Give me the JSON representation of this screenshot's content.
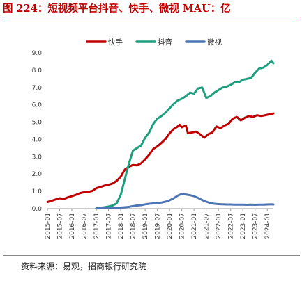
{
  "figure": {
    "title": "图 224：短视频平台抖音、快手、微视 MAU：亿",
    "source": "资料来源：易观，招商银行研究院"
  },
  "chart_data": {
    "type": "line",
    "ylim": [
      0,
      9
    ],
    "y_ticks": [
      "0.0",
      "1.0",
      "2.0",
      "3.0",
      "4.0",
      "5.0",
      "6.0",
      "7.0",
      "8.0",
      "9.0"
    ],
    "x_tick_labels": [
      "2015-01",
      "2015-07",
      "2016-01",
      "2016-07",
      "2017-01",
      "2017-07",
      "2018-01",
      "2018-07",
      "2019-01",
      "2019-07",
      "2020-01",
      "2020-07",
      "2021-01",
      "2021-07",
      "2022-01",
      "2022-07",
      "2023-01",
      "2023-07",
      "2024-01"
    ],
    "x_range": [
      "2015-01",
      "2024-04"
    ],
    "grid": false,
    "legend_position": "top",
    "series": [
      {
        "name": "快手",
        "color": "#c00000",
        "points": [
          [
            "2015-01",
            0.38
          ],
          [
            "2015-03",
            0.45
          ],
          [
            "2015-05",
            0.53
          ],
          [
            "2015-07",
            0.6
          ],
          [
            "2015-09",
            0.56
          ],
          [
            "2015-11",
            0.65
          ],
          [
            "2016-01",
            0.72
          ],
          [
            "2016-03",
            0.8
          ],
          [
            "2016-05",
            0.9
          ],
          [
            "2016-07",
            0.95
          ],
          [
            "2016-09",
            0.97
          ],
          [
            "2016-11",
            1.02
          ],
          [
            "2017-01",
            1.18
          ],
          [
            "2017-03",
            1.25
          ],
          [
            "2017-05",
            1.33
          ],
          [
            "2017-07",
            1.38
          ],
          [
            "2017-09",
            1.45
          ],
          [
            "2017-11",
            1.6
          ],
          [
            "2018-01",
            1.85
          ],
          [
            "2018-03",
            2.25
          ],
          [
            "2018-05",
            2.42
          ],
          [
            "2018-07",
            2.52
          ],
          [
            "2018-09",
            2.5
          ],
          [
            "2018-11",
            2.62
          ],
          [
            "2019-01",
            2.85
          ],
          [
            "2019-03",
            3.12
          ],
          [
            "2019-05",
            3.45
          ],
          [
            "2019-07",
            3.6
          ],
          [
            "2019-09",
            3.8
          ],
          [
            "2019-11",
            4.02
          ],
          [
            "2020-01",
            4.35
          ],
          [
            "2020-03",
            4.6
          ],
          [
            "2020-05",
            4.75
          ],
          [
            "2020-06",
            4.85
          ],
          [
            "2020-07",
            4.7
          ],
          [
            "2020-09",
            4.8
          ],
          [
            "2020-10",
            4.35
          ],
          [
            "2020-12",
            4.4
          ],
          [
            "2021-02",
            4.45
          ],
          [
            "2021-04",
            4.3
          ],
          [
            "2021-06",
            4.1
          ],
          [
            "2021-08",
            4.3
          ],
          [
            "2021-10",
            4.4
          ],
          [
            "2021-12",
            4.75
          ],
          [
            "2022-02",
            4.65
          ],
          [
            "2022-04",
            4.8
          ],
          [
            "2022-06",
            4.9
          ],
          [
            "2022-08",
            5.2
          ],
          [
            "2022-10",
            5.3
          ],
          [
            "2022-12",
            5.1
          ],
          [
            "2023-02",
            5.25
          ],
          [
            "2023-04",
            5.35
          ],
          [
            "2023-06",
            5.3
          ],
          [
            "2023-08",
            5.4
          ],
          [
            "2023-10",
            5.35
          ],
          [
            "2023-12",
            5.4
          ],
          [
            "2024-02",
            5.45
          ],
          [
            "2024-04",
            5.5
          ]
        ]
      },
      {
        "name": "抖音",
        "color": "#1d9e7e",
        "points": [
          [
            "2017-01",
            0.02
          ],
          [
            "2017-03",
            0.05
          ],
          [
            "2017-05",
            0.08
          ],
          [
            "2017-07",
            0.12
          ],
          [
            "2017-09",
            0.18
          ],
          [
            "2017-11",
            0.3
          ],
          [
            "2018-01",
            0.8
          ],
          [
            "2018-03",
            1.7
          ],
          [
            "2018-05",
            2.6
          ],
          [
            "2018-07",
            3.35
          ],
          [
            "2018-09",
            3.5
          ],
          [
            "2018-11",
            3.65
          ],
          [
            "2019-01",
            4.1
          ],
          [
            "2019-03",
            4.4
          ],
          [
            "2019-05",
            4.9
          ],
          [
            "2019-07",
            5.2
          ],
          [
            "2019-09",
            5.35
          ],
          [
            "2019-11",
            5.55
          ],
          [
            "2020-01",
            5.8
          ],
          [
            "2020-03",
            6.05
          ],
          [
            "2020-05",
            6.25
          ],
          [
            "2020-07",
            6.35
          ],
          [
            "2020-09",
            6.5
          ],
          [
            "2020-11",
            6.7
          ],
          [
            "2021-01",
            6.65
          ],
          [
            "2021-03",
            6.95
          ],
          [
            "2021-05",
            7.0
          ],
          [
            "2021-07",
            6.4
          ],
          [
            "2021-09",
            6.5
          ],
          [
            "2021-11",
            6.7
          ],
          [
            "2022-01",
            6.85
          ],
          [
            "2022-03",
            7.0
          ],
          [
            "2022-05",
            7.05
          ],
          [
            "2022-07",
            7.15
          ],
          [
            "2022-09",
            7.3
          ],
          [
            "2022-11",
            7.3
          ],
          [
            "2023-01",
            7.45
          ],
          [
            "2023-03",
            7.5
          ],
          [
            "2023-05",
            7.55
          ],
          [
            "2023-07",
            7.85
          ],
          [
            "2023-09",
            8.1
          ],
          [
            "2023-11",
            8.15
          ],
          [
            "2024-01",
            8.3
          ],
          [
            "2024-03",
            8.55
          ],
          [
            "2024-04",
            8.4
          ]
        ]
      },
      {
        "name": "微视",
        "color": "#4d74b5",
        "points": [
          [
            "2017-01",
            0.01
          ],
          [
            "2017-03",
            0.02
          ],
          [
            "2017-05",
            0.02
          ],
          [
            "2017-07",
            0.03
          ],
          [
            "2017-09",
            0.04
          ],
          [
            "2017-11",
            0.05
          ],
          [
            "2018-01",
            0.06
          ],
          [
            "2018-03",
            0.08
          ],
          [
            "2018-05",
            0.1
          ],
          [
            "2018-07",
            0.15
          ],
          [
            "2018-09",
            0.18
          ],
          [
            "2018-11",
            0.2
          ],
          [
            "2019-01",
            0.25
          ],
          [
            "2019-03",
            0.28
          ],
          [
            "2019-05",
            0.3
          ],
          [
            "2019-07",
            0.32
          ],
          [
            "2019-09",
            0.35
          ],
          [
            "2019-11",
            0.4
          ],
          [
            "2020-01",
            0.48
          ],
          [
            "2020-03",
            0.6
          ],
          [
            "2020-05",
            0.75
          ],
          [
            "2020-07",
            0.85
          ],
          [
            "2020-09",
            0.82
          ],
          [
            "2020-11",
            0.78
          ],
          [
            "2021-01",
            0.72
          ],
          [
            "2021-03",
            0.62
          ],
          [
            "2021-05",
            0.5
          ],
          [
            "2021-07",
            0.4
          ],
          [
            "2021-09",
            0.32
          ],
          [
            "2021-11",
            0.28
          ],
          [
            "2022-01",
            0.26
          ],
          [
            "2022-03",
            0.25
          ],
          [
            "2022-05",
            0.24
          ],
          [
            "2022-07",
            0.24
          ],
          [
            "2022-09",
            0.23
          ],
          [
            "2022-11",
            0.23
          ],
          [
            "2023-01",
            0.23
          ],
          [
            "2023-03",
            0.22
          ],
          [
            "2023-05",
            0.23
          ],
          [
            "2023-07",
            0.22
          ],
          [
            "2023-09",
            0.23
          ],
          [
            "2023-11",
            0.23
          ],
          [
            "2024-01",
            0.24
          ],
          [
            "2024-03",
            0.25
          ],
          [
            "2024-04",
            0.24
          ]
        ]
      }
    ]
  }
}
